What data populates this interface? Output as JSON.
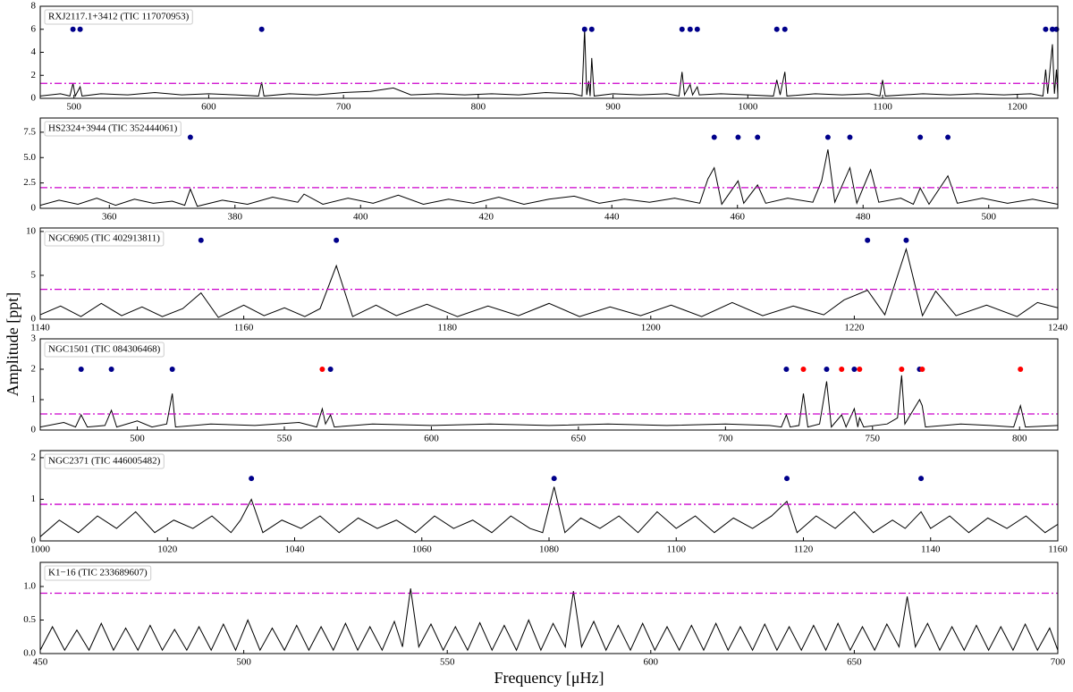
{
  "ylabel": "Amplitude [ppt]",
  "xlabel": "Frequency [μHz]",
  "chart_data": [
    {
      "type": "line",
      "label": "RXJ2117.1+3412 (TIC 117070953)",
      "color": "#000000",
      "xlim": [
        475,
        1230
      ],
      "ylim": [
        0,
        8
      ],
      "xticks": [
        500,
        600,
        700,
        800,
        900,
        1000,
        1100,
        1200
      ],
      "yticks": [
        0,
        2,
        4,
        6,
        8
      ],
      "threshold": 1.3,
      "threshold_color": "#cc00cc",
      "x": [
        475,
        490,
        497,
        499.3,
        501,
        504.6,
        506,
        520,
        540,
        560,
        580,
        600,
        620,
        637,
        639.3,
        641,
        660,
        680,
        700,
        720,
        737,
        750,
        770,
        790,
        810,
        830,
        850,
        870,
        877,
        878.9,
        880.5,
        882,
        883,
        884.2,
        886,
        900,
        920,
        940,
        949,
        951.2,
        953,
        957.2,
        959,
        962.5,
        964,
        980,
        1000,
        1019,
        1021.5,
        1024,
        1027.5,
        1029,
        1050,
        1070,
        1090,
        1098,
        1100,
        1102,
        1130,
        1150,
        1170,
        1190,
        1210,
        1219,
        1221,
        1222.5,
        1226,
        1227.5,
        1229,
        1230
      ],
      "values": [
        0.2,
        0.4,
        0.2,
        1.3,
        0.2,
        1.0,
        0.2,
        0.4,
        0.3,
        0.5,
        0.3,
        0.4,
        0.3,
        0.2,
        1.4,
        0.2,
        0.4,
        0.3,
        0.5,
        0.6,
        0.9,
        0.3,
        0.4,
        0.3,
        0.4,
        0.3,
        0.5,
        0.4,
        0.2,
        6.0,
        0.3,
        1.5,
        0.2,
        3.5,
        0.2,
        0.4,
        0.3,
        0.4,
        0.2,
        2.3,
        0.3,
        1.2,
        0.3,
        1.0,
        0.3,
        0.4,
        0.3,
        0.2,
        1.6,
        0.3,
        2.3,
        0.2,
        0.4,
        0.3,
        0.4,
        0.2,
        1.6,
        0.2,
        0.4,
        0.3,
        0.4,
        0.3,
        0.4,
        0.2,
        2.5,
        0.4,
        4.7,
        0.4,
        2.5,
        0.3
      ],
      "markers": [
        {
          "color": "#00008b",
          "x": [
            499.3,
            504.6,
            639.3,
            878.9,
            884.2,
            951.2,
            957.2,
            962.5,
            1021.5,
            1027.5,
            1221,
            1226,
            1229
          ],
          "values": [
            6,
            6,
            6,
            6,
            6,
            6,
            6,
            6,
            6,
            6,
            6,
            6,
            6
          ]
        }
      ]
    },
    {
      "type": "line",
      "label": "HS2324+3944 (TIC 352444061)",
      "color": "#000000",
      "xlim": [
        349,
        511
      ],
      "ylim": [
        0,
        8.9
      ],
      "xticks": [
        360,
        380,
        400,
        420,
        440,
        460,
        480,
        500
      ],
      "yticks": [
        0,
        2.5,
        {
          "value": 5,
          "label": "5.0"
        },
        7.5
      ],
      "threshold": 2.04,
      "threshold_color": "#cc00cc",
      "x": [
        349,
        352,
        355,
        358,
        361,
        364,
        367,
        370,
        372,
        372.9,
        374,
        378,
        382,
        386,
        390,
        391,
        394,
        398,
        402,
        406,
        410,
        414,
        418,
        422,
        426,
        430,
        434,
        438,
        442,
        446,
        450,
        454,
        455.3,
        456.3,
        457.5,
        460.1,
        461,
        463.2,
        464.5,
        468,
        472,
        473.4,
        474.4,
        475.5,
        477.9,
        479,
        481.2,
        482.5,
        486,
        488,
        489.1,
        490.5,
        493.5,
        495,
        499,
        503,
        507,
        511
      ],
      "values": [
        0.3,
        0.8,
        0.4,
        1.0,
        0.3,
        0.9,
        0.5,
        0.7,
        0.3,
        1.9,
        0.2,
        0.8,
        0.4,
        1.1,
        0.6,
        1.4,
        0.4,
        1.0,
        0.5,
        1.3,
        0.4,
        0.9,
        0.5,
        1.1,
        0.4,
        0.9,
        1.2,
        0.5,
        0.9,
        0.6,
        1.0,
        0.5,
        2.9,
        4.0,
        0.4,
        2.7,
        0.5,
        2.3,
        0.5,
        1.0,
        0.6,
        2.7,
        5.8,
        0.6,
        4.0,
        0.5,
        3.8,
        0.6,
        1.0,
        0.4,
        2.0,
        0.4,
        3.2,
        0.5,
        1.0,
        0.5,
        0.9,
        0.4
      ],
      "markers": [
        {
          "color": "#00008b",
          "x": [
            372.9,
            456.3,
            460.1,
            463.2,
            474.4,
            477.9,
            489.1,
            493.5
          ],
          "values": [
            7,
            7,
            7,
            7,
            7,
            7,
            7,
            7
          ]
        }
      ]
    },
    {
      "type": "line",
      "label": "NGC6905 (TIC 402913811)",
      "color": "#000000",
      "xlim": [
        1140,
        1240
      ],
      "ylim": [
        0,
        10.4
      ],
      "xticks": [
        1140,
        1160,
        1180,
        1200,
        1220,
        1240
      ],
      "yticks": [
        0,
        5,
        10
      ],
      "threshold": 3.4,
      "threshold_color": "#cc00cc",
      "x": [
        1140,
        1142,
        1144,
        1146,
        1148,
        1150,
        1152,
        1154,
        1155.8,
        1157.5,
        1160,
        1162,
        1164,
        1166,
        1167.5,
        1169.1,
        1170.7,
        1173,
        1175,
        1178,
        1181,
        1184,
        1187,
        1190,
        1193,
        1196,
        1199,
        1202,
        1205,
        1208,
        1211,
        1214,
        1217,
        1219,
        1221.3,
        1223,
        1225.1,
        1226.7,
        1228,
        1230,
        1233,
        1236,
        1238,
        1240
      ],
      "values": [
        0.5,
        1.5,
        0.3,
        1.8,
        0.4,
        1.4,
        0.3,
        1.2,
        3.0,
        0.2,
        1.6,
        0.4,
        1.3,
        0.3,
        1.2,
        6.1,
        0.3,
        1.6,
        0.4,
        1.7,
        0.3,
        1.5,
        0.4,
        1.8,
        0.3,
        1.4,
        0.4,
        1.6,
        0.3,
        1.9,
        0.4,
        1.5,
        0.5,
        2.2,
        3.3,
        0.5,
        8.0,
        0.4,
        3.2,
        0.4,
        1.6,
        0.3,
        1.9,
        1.3
      ],
      "markers": [
        {
          "color": "#00008b",
          "x": [
            1155.8,
            1169.1,
            1221.3,
            1225.1
          ],
          "values": [
            9,
            9,
            9,
            9
          ]
        }
      ]
    },
    {
      "type": "line",
      "label": "NGC1501 (TIC 084306468)",
      "color": "#000000",
      "xlim": [
        467,
        813
      ],
      "ylim": [
        0,
        3
      ],
      "xticks": [
        500,
        550,
        600,
        650,
        700,
        750,
        800
      ],
      "yticks": [
        0,
        1,
        2,
        3
      ],
      "threshold": 0.53,
      "threshold_color": "#cc00cc",
      "x": [
        467,
        475,
        479,
        480.9,
        483,
        489,
        491.2,
        493,
        500,
        505,
        510,
        511.9,
        513,
        525,
        540,
        555,
        561,
        562.9,
        564,
        565.7,
        567,
        580,
        600,
        620,
        640,
        660,
        680,
        700,
        715,
        719,
        720.7,
        722,
        725,
        726.5,
        728,
        732,
        734.4,
        736,
        739.5,
        741,
        743.8,
        745,
        745.6,
        747,
        755,
        758.5,
        759.9,
        761,
        766,
        766.9,
        768,
        780,
        790,
        798,
        800.3,
        802,
        813
      ],
      "values": [
        0.1,
        0.25,
        0.1,
        0.5,
        0.1,
        0.15,
        0.65,
        0.1,
        0.3,
        0.1,
        0.2,
        1.2,
        0.1,
        0.2,
        0.15,
        0.25,
        0.1,
        0.7,
        0.2,
        0.5,
        0.1,
        0.2,
        0.15,
        0.2,
        0.15,
        0.2,
        0.15,
        0.2,
        0.15,
        0.1,
        0.5,
        0.1,
        0.15,
        1.2,
        0.1,
        0.2,
        1.6,
        0.1,
        0.5,
        0.1,
        0.7,
        0.1,
        0.4,
        0.1,
        0.2,
        0.4,
        1.8,
        0.2,
        1.0,
        0.8,
        0.1,
        0.2,
        0.15,
        0.1,
        0.8,
        0.1,
        0.15
      ],
      "markers": [
        {
          "color": "#00008b",
          "x": [
            480.9,
            491.2,
            511.9,
            565.7,
            720.7,
            734.4,
            743.8,
            766.0
          ],
          "values": [
            2,
            2,
            2,
            2,
            2,
            2,
            2,
            2
          ]
        },
        {
          "color": "#ff0000",
          "x": [
            562.9,
            726.5,
            739.5,
            745.6,
            759.9,
            766.9,
            800.3
          ],
          "values": [
            2,
            2,
            2,
            2,
            2,
            2,
            2
          ]
        }
      ]
    },
    {
      "type": "line",
      "label": "NGC2371 (TIC 446005482)",
      "color": "#000000",
      "xlim": [
        1000,
        1160
      ],
      "ylim": [
        0,
        2.17
      ],
      "xticks": [
        1000,
        1020,
        1040,
        1060,
        1080,
        1100,
        1120,
        1140,
        1160
      ],
      "yticks": [
        0,
        1,
        2
      ],
      "threshold": 0.88,
      "threshold_color": "#cc00cc",
      "x": [
        1000,
        1003,
        1006,
        1009,
        1012,
        1015,
        1018,
        1021,
        1024,
        1027,
        1030,
        1031.5,
        1033.2,
        1035,
        1038,
        1041,
        1044,
        1047,
        1050,
        1053,
        1056,
        1059,
        1062,
        1065,
        1068,
        1071,
        1074,
        1077,
        1079,
        1080.8,
        1082.5,
        1085,
        1088,
        1091,
        1094,
        1097,
        1100,
        1103,
        1106,
        1109,
        1112,
        1115,
        1117.4,
        1119,
        1122,
        1125,
        1128,
        1131,
        1134,
        1136,
        1138.5,
        1140,
        1143,
        1146,
        1149,
        1152,
        1155,
        1158,
        1160
      ],
      "values": [
        0.1,
        0.5,
        0.2,
        0.6,
        0.3,
        0.7,
        0.2,
        0.5,
        0.3,
        0.6,
        0.2,
        0.5,
        1.0,
        0.2,
        0.5,
        0.3,
        0.6,
        0.2,
        0.55,
        0.3,
        0.5,
        0.2,
        0.6,
        0.3,
        0.5,
        0.2,
        0.6,
        0.3,
        0.2,
        1.3,
        0.2,
        0.55,
        0.3,
        0.6,
        0.2,
        0.7,
        0.3,
        0.6,
        0.2,
        0.55,
        0.3,
        0.6,
        0.95,
        0.2,
        0.6,
        0.3,
        0.7,
        0.2,
        0.5,
        0.3,
        0.7,
        0.3,
        0.6,
        0.2,
        0.55,
        0.3,
        0.6,
        0.2,
        0.4
      ],
      "markers": [
        {
          "color": "#00008b",
          "x": [
            1033.2,
            1080.8,
            1117.4,
            1138.5
          ],
          "values": [
            1.5,
            1.5,
            1.5,
            1.5
          ]
        }
      ]
    },
    {
      "type": "line",
      "label": "K1−16 (TIC 233689607)",
      "color": "#000000",
      "xlim": [
        450,
        700
      ],
      "ylim": [
        0,
        1.36
      ],
      "xticks": [
        450,
        500,
        550,
        600,
        650,
        700
      ],
      "yticks": [
        {
          "value": 0,
          "label": "0.0"
        },
        0.5,
        {
          "value": 1,
          "label": "1.0"
        }
      ],
      "threshold": 0.9,
      "threshold_color": "#cc00cc",
      "x": [
        450,
        453,
        456,
        459,
        462,
        465,
        468,
        471,
        474,
        477,
        480,
        483,
        486,
        489,
        492,
        495,
        498,
        501,
        504,
        507,
        510,
        513,
        516,
        519,
        522,
        525,
        528,
        531,
        534,
        537,
        539,
        541,
        543,
        546,
        549,
        552,
        555,
        558,
        561,
        564,
        567,
        570,
        573,
        576,
        579,
        581,
        583,
        586,
        589,
        592,
        595,
        598,
        601,
        604,
        607,
        610,
        613,
        616,
        619,
        622,
        625,
        628,
        631,
        634,
        637,
        640,
        643,
        646,
        649,
        652,
        655,
        658,
        661,
        663,
        665,
        668,
        671,
        674,
        677,
        680,
        683,
        686,
        689,
        692,
        695,
        698,
        700
      ],
      "values": [
        0.05,
        0.4,
        0.05,
        0.35,
        0.05,
        0.45,
        0.05,
        0.38,
        0.05,
        0.42,
        0.05,
        0.36,
        0.05,
        0.4,
        0.05,
        0.44,
        0.05,
        0.5,
        0.05,
        0.38,
        0.05,
        0.42,
        0.05,
        0.4,
        0.05,
        0.45,
        0.05,
        0.4,
        0.05,
        0.48,
        0.1,
        0.97,
        0.1,
        0.44,
        0.05,
        0.4,
        0.05,
        0.46,
        0.05,
        0.42,
        0.05,
        0.5,
        0.05,
        0.45,
        0.1,
        0.93,
        0.1,
        0.48,
        0.05,
        0.42,
        0.05,
        0.45,
        0.05,
        0.4,
        0.05,
        0.42,
        0.05,
        0.45,
        0.05,
        0.4,
        0.05,
        0.44,
        0.05,
        0.4,
        0.05,
        0.42,
        0.05,
        0.45,
        0.05,
        0.4,
        0.05,
        0.44,
        0.1,
        0.85,
        0.1,
        0.45,
        0.05,
        0.4,
        0.05,
        0.42,
        0.05,
        0.4,
        0.05,
        0.44,
        0.05,
        0.38,
        0.05
      ],
      "markers": []
    }
  ]
}
